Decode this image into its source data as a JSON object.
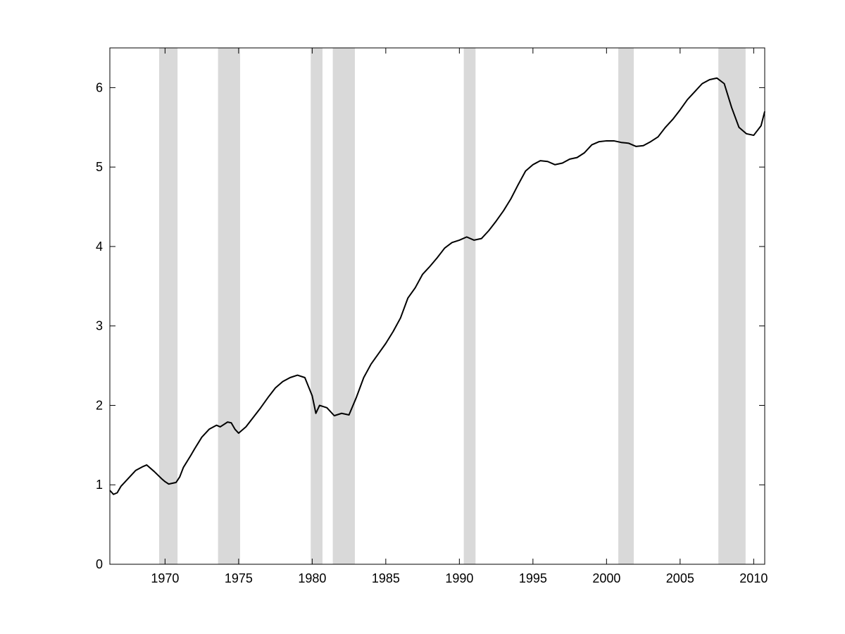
{
  "chart_data": {
    "type": "line",
    "title": "",
    "xlabel": "",
    "ylabel": "",
    "xlim": [
      1966.25,
      2010.75
    ],
    "ylim": [
      0,
      6.5
    ],
    "grid": false,
    "x_ticks": [
      1970,
      1975,
      1980,
      1985,
      1990,
      1995,
      2000,
      2005,
      2010
    ],
    "x_tick_labels": [
      "1970",
      "1975",
      "1980",
      "1985",
      "1990",
      "1995",
      "2000",
      "2005",
      "2010"
    ],
    "y_ticks": [
      0,
      1,
      2,
      3,
      4,
      5,
      6
    ],
    "y_tick_labels": [
      "0",
      "1",
      "2",
      "3",
      "4",
      "5",
      "6"
    ],
    "shaded_bands": [
      {
        "start": 1969.6,
        "end": 1970.85
      },
      {
        "start": 1973.6,
        "end": 1975.1
      },
      {
        "start": 1979.9,
        "end": 1980.7
      },
      {
        "start": 1981.4,
        "end": 1982.9
      },
      {
        "start": 1990.3,
        "end": 1991.1
      },
      {
        "start": 2000.8,
        "end": 2001.85
      },
      {
        "start": 2007.6,
        "end": 2009.45
      }
    ],
    "band_color": "#d9d9d9",
    "line_color": "#000000",
    "series": [
      {
        "x": [
          1966.25,
          1966.5,
          1966.75,
          1967.0,
          1967.5,
          1968.0,
          1968.5,
          1968.75,
          1969.25,
          1969.75,
          1970.0,
          1970.25,
          1970.75,
          1971.0,
          1971.25,
          1971.75,
          1972.0,
          1972.5,
          1973.0,
          1973.5,
          1973.75,
          1974.25,
          1974.5,
          1974.75,
          1975.0,
          1975.5,
          1976.0,
          1976.5,
          1977.0,
          1977.5,
          1978.0,
          1978.5,
          1979.0,
          1979.5,
          1980.0,
          1980.25,
          1980.5,
          1981.0,
          1981.5,
          1982.0,
          1982.5,
          1983.0,
          1983.5,
          1984.0,
          1984.5,
          1985.0,
          1985.5,
          1986.0,
          1986.5,
          1987.0,
          1987.5,
          1988.0,
          1988.5,
          1989.0,
          1989.5,
          1990.0,
          1990.5,
          1991.0,
          1991.5,
          1992.0,
          1992.5,
          1993.0,
          1993.5,
          1994.0,
          1994.5,
          1995.0,
          1995.5,
          1996.0,
          1996.5,
          1997.0,
          1997.5,
          1998.0,
          1998.5,
          1999.0,
          1999.5,
          2000.0,
          2000.5,
          2001.0,
          2001.5,
          2002.0,
          2002.5,
          2003.0,
          2003.5,
          2004.0,
          2004.5,
          2005.0,
          2005.5,
          2006.0,
          2006.5,
          2007.0,
          2007.5,
          2008.0,
          2008.5,
          2009.0,
          2009.5,
          2010.0,
          2010.5,
          2010.75
        ],
        "y": [
          0.93,
          0.88,
          0.9,
          0.98,
          1.08,
          1.18,
          1.23,
          1.25,
          1.17,
          1.08,
          1.04,
          1.01,
          1.03,
          1.1,
          1.22,
          1.37,
          1.45,
          1.6,
          1.7,
          1.75,
          1.73,
          1.79,
          1.78,
          1.7,
          1.65,
          1.73,
          1.85,
          1.97,
          2.1,
          2.22,
          2.3,
          2.35,
          2.38,
          2.35,
          2.12,
          1.9,
          2.0,
          1.97,
          1.87,
          1.9,
          1.88,
          2.1,
          2.35,
          2.52,
          2.65,
          2.78,
          2.93,
          3.1,
          3.35,
          3.48,
          3.65,
          3.75,
          3.86,
          3.98,
          4.05,
          4.08,
          4.12,
          4.08,
          4.1,
          4.2,
          4.32,
          4.45,
          4.6,
          4.78,
          4.95,
          5.03,
          5.08,
          5.07,
          5.03,
          5.05,
          5.1,
          5.12,
          5.18,
          5.28,
          5.32,
          5.33,
          5.33,
          5.31,
          5.3,
          5.26,
          5.27,
          5.32,
          5.38,
          5.5,
          5.6,
          5.72,
          5.85,
          5.95,
          6.05,
          6.1,
          6.12,
          6.05,
          5.75,
          5.5,
          5.42,
          5.4,
          5.52,
          5.7
        ]
      }
    ]
  }
}
